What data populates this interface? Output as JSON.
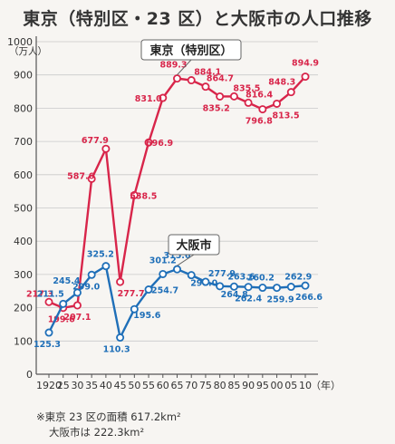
{
  "chart_data": {
    "type": "line",
    "title": "東京（特別区・23 区）と大阪市の人口推移",
    "y_unit_label": "（万人）",
    "x_unit_label": "（年）",
    "ylim": [
      0,
      1000
    ],
    "y_ticks": [
      0,
      100,
      200,
      300,
      400,
      500,
      600,
      700,
      800,
      900,
      1000
    ],
    "x_tick_labels": [
      "1920",
      "25",
      "30",
      "35",
      "40",
      "45",
      "50",
      "55",
      "60",
      "65",
      "70",
      "75",
      "80",
      "85",
      "90",
      "95",
      "00",
      "05",
      "10"
    ],
    "x": [
      1920,
      1925,
      1930,
      1935,
      1940,
      1945,
      1950,
      1955,
      1960,
      1965,
      1970,
      1975,
      1980,
      1985,
      1990,
      1995,
      2000,
      2005,
      2010
    ],
    "grid": true,
    "series": [
      {
        "name": "東京（特別区）",
        "color": "#d8254a",
        "values": [
          217.3,
          199.6,
          207.1,
          587.6,
          677.9,
          277.7,
          538.5,
          696.9,
          831.0,
          889.3,
          884.1,
          864.7,
          835.2,
          835.5,
          816.4,
          796.8,
          813.5,
          848.3,
          894.9
        ],
        "labels": [
          "217.3",
          "199.6",
          "207.1",
          "587.6",
          "677.9",
          "277.7",
          "538.5",
          "696.9",
          "831.0",
          "889.3",
          "884.1",
          "864.7",
          "835.2",
          "835.5",
          "816.4",
          "796.8",
          "813.5",
          "848.3",
          "894.9"
        ]
      },
      {
        "name": "大阪市",
        "color": "#1f6fb8",
        "values": [
          125.3,
          211.5,
          245.4,
          299.0,
          325.2,
          110.3,
          195.6,
          254.7,
          301.2,
          315.6,
          298.0,
          277.9,
          264.8,
          263.6,
          262.4,
          260.2,
          259.9,
          262.9,
          266.6
        ],
        "labels": [
          "125.3",
          "211.5",
          "245.4",
          "299.0",
          "325.2",
          "110.3",
          "195.6",
          "254.7",
          "301.2",
          "315.6",
          "298.0",
          "277.9",
          "264.8",
          "263.6",
          "262.4",
          "260.2",
          "259.9",
          "262.9",
          "266.6"
        ]
      }
    ]
  },
  "footnote": {
    "line1": "※東京 23 区の面積 617.2km²",
    "line2": "大阪市は 222.3km²"
  }
}
